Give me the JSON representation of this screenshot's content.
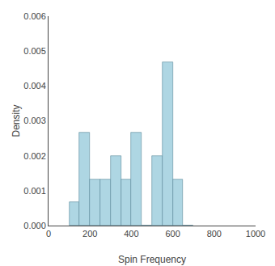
{
  "chart_data": {
    "type": "histogram",
    "xlabel": "Spin Frequency",
    "ylabel": "Density",
    "bins": [
      100,
      150,
      200,
      250,
      300,
      350,
      400,
      450,
      500,
      550,
      600,
      650,
      700
    ],
    "values": [
      0.00067,
      0.00267,
      0.00133,
      0.00133,
      0.002,
      0.00133,
      0.00267,
      0.0,
      0.002,
      0.00467,
      0.00133,
      0.0
    ],
    "color": "#aed6e3",
    "xlim": [
      0,
      1000
    ],
    "ylim": [
      0,
      0.006
    ],
    "xticks": [
      0,
      200,
      400,
      600,
      800,
      1000
    ],
    "yticks": [
      {
        "value": 0,
        "label": "0.000"
      },
      {
        "value": 0.001,
        "label": "0.001"
      },
      {
        "value": 0.002,
        "label": "0.002"
      },
      {
        "value": 0.003,
        "label": "0.003"
      },
      {
        "value": 0.004,
        "label": "0.004"
      },
      {
        "value": 0.005,
        "label": "0.005"
      },
      {
        "value": 0.006,
        "label": "0.006"
      }
    ],
    "grid": false
  }
}
